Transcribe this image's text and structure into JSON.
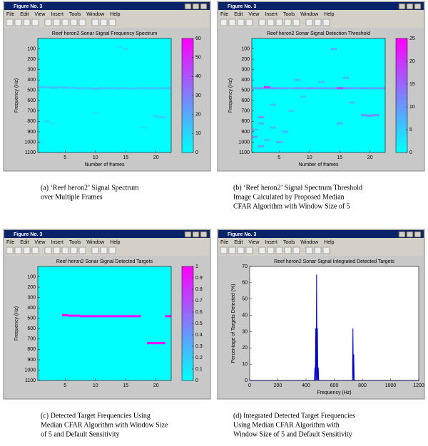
{
  "window_title": "Figure No. 3",
  "menu": [
    "File",
    "Edit",
    "View",
    "Insert",
    "Tools",
    "Window",
    "Help"
  ],
  "chart_data": [
    {
      "type": "heatmap",
      "title": "Reef heron2 Sonar Signal Frequency Spectrum",
      "xlabel": "Number of frames",
      "ylabel": "Frequency (Hz)",
      "caption": [
        "(a) ‘Reef heron2’ Signal Spectrum",
        "over Multiple Frames"
      ],
      "colormap": "cool",
      "xlim": [
        0.5,
        22.5
      ],
      "ylim": [
        0,
        1100
      ],
      "yreverse": true,
      "xticks": [
        5,
        10,
        15,
        20
      ],
      "yticks": [
        100,
        200,
        300,
        400,
        500,
        600,
        700,
        800,
        900,
        1000,
        1100
      ],
      "clim": [
        0,
        60
      ],
      "cticks": [
        0,
        10,
        20,
        30,
        40,
        50,
        60
      ],
      "x": [
        1,
        2,
        3,
        4,
        5,
        6,
        7,
        8,
        9,
        10,
        11,
        12,
        13,
        14,
        15,
        16,
        17,
        18,
        19,
        20,
        21,
        22,
        2,
        3,
        1,
        10,
        15,
        18,
        20,
        21,
        14
      ],
      "y": [
        470,
        470,
        475,
        470,
        475,
        475,
        480,
        480,
        480,
        485,
        480,
        480,
        480,
        480,
        480,
        485,
        480,
        480,
        480,
        480,
        480,
        480,
        800,
        820,
        1000,
        720,
        100,
        860,
        750,
        760,
        80
      ],
      "values": [
        14,
        12,
        15,
        13,
        16,
        12,
        14,
        13,
        12,
        15,
        14,
        13,
        12,
        14,
        13,
        12,
        13,
        12,
        14,
        13,
        12,
        14,
        8,
        6,
        5,
        6,
        8,
        6,
        10,
        12,
        7
      ]
    },
    {
      "type": "heatmap",
      "title": "Reef heron2 Sonar Signal Detection Threshold",
      "xlabel": "Number of frames",
      "ylabel": "Frequency (Hz)",
      "caption": [
        "(b) ‘Reef heron2’ Signal Spectrum Threshold",
        "Image Calculated by Proposed Median",
        "CFAR Algorithm with Window Size of 5"
      ],
      "colormap": "cool",
      "xlim": [
        0.5,
        22.5
      ],
      "ylim": [
        0,
        1100
      ],
      "yreverse": true,
      "xticks": [
        5,
        10,
        15,
        20
      ],
      "yticks": [
        100,
        200,
        300,
        400,
        500,
        600,
        700,
        800,
        900,
        1000,
        1100
      ],
      "clim": [
        0,
        25
      ],
      "cticks": [
        0,
        5,
        10,
        15,
        20,
        25
      ],
      "x": [
        1,
        2,
        3,
        4,
        5,
        6,
        7,
        8,
        9,
        10,
        11,
        12,
        13,
        14,
        15,
        16,
        17,
        18,
        19,
        20,
        21,
        22,
        3,
        15,
        2,
        4,
        6,
        1,
        3,
        5,
        2,
        8,
        16,
        19,
        20,
        21,
        14,
        12,
        7,
        1,
        2,
        4,
        9,
        15,
        17
      ],
      "y": [
        480,
        480,
        480,
        480,
        480,
        480,
        480,
        480,
        480,
        480,
        480,
        480,
        480,
        480,
        480,
        480,
        480,
        480,
        480,
        480,
        480,
        480,
        470,
        480,
        820,
        860,
        900,
        950,
        980,
        1000,
        760,
        400,
        380,
        740,
        745,
        740,
        100,
        420,
        700,
        880,
        1040,
        640,
        560,
        820,
        620
      ],
      "values": [
        9,
        10,
        8,
        11,
        10,
        9,
        8,
        10,
        9,
        11,
        10,
        9,
        8,
        9,
        10,
        11,
        9,
        8,
        10,
        9,
        8,
        9,
        20,
        18,
        8,
        6,
        7,
        9,
        6,
        8,
        10,
        6,
        7,
        10,
        12,
        11,
        8,
        6,
        5,
        7,
        9,
        6,
        5,
        7,
        6
      ]
    },
    {
      "type": "heatmap",
      "title": "Reef heron2 Sonar Signal Detected Targets",
      "ylabel": "Frequency (Hz)",
      "caption": [
        "(c) Detected Target Frequencies Using",
        "Median CFAR Algorithm with Window Size",
        "of 5 and Default Sensitivity"
      ],
      "colormap": "cool",
      "xlim": [
        0.5,
        22.5
      ],
      "ylim": [
        0,
        1100
      ],
      "yreverse": true,
      "xticks": [
        5,
        10,
        15,
        20
      ],
      "yticks": [
        100,
        200,
        300,
        400,
        500,
        600,
        700,
        800,
        900,
        1000,
        1100
      ],
      "clim": [
        0,
        1
      ],
      "cticks": [
        0,
        0.1,
        0.2,
        0.3,
        0.4,
        0.5,
        0.6,
        0.7,
        0.8,
        0.9,
        1
      ],
      "x": [
        5,
        6,
        7,
        8,
        9,
        10,
        11,
        12,
        13,
        14,
        15,
        16,
        17,
        22,
        19,
        20,
        21
      ],
      "y": [
        470,
        475,
        475,
        480,
        480,
        480,
        480,
        480,
        480,
        480,
        480,
        480,
        480,
        480,
        740,
        740,
        740
      ],
      "values": [
        1,
        1,
        1,
        1,
        1,
        1,
        1,
        1,
        1,
        1,
        1,
        1,
        1,
        1,
        1,
        1,
        1
      ]
    },
    {
      "type": "line",
      "title": "Reef heron2 Sonar Signal Integrated Detected Targets",
      "xlabel": "Frequency (Hz)",
      "ylabel": "Percentage of Targets Detected (%)",
      "caption": [
        "(d) Integrated Detected Target Frequencies",
        "Using Median CFAR Algorithm with",
        "Window Size of 5 and Default Sensitivity"
      ],
      "xlim": [
        0,
        1200
      ],
      "ylim": [
        0,
        70
      ],
      "xticks": [
        0,
        200,
        400,
        600,
        800,
        1000,
        1200
      ],
      "yticks": [
        0,
        10,
        20,
        30,
        40,
        50,
        60,
        70
      ],
      "series": [
        {
          "color": "#0000cc",
          "x": [
            0,
            460,
            463,
            466,
            469,
            472,
            475,
            478,
            481,
            484,
            487,
            490,
            730,
            733,
            736,
            739,
            742,
            745,
            748,
            1200
          ],
          "values": [
            0,
            0,
            8,
            0,
            32,
            0,
            65,
            0,
            32,
            0,
            8,
            0,
            0,
            32,
            0,
            16,
            0,
            0,
            0,
            0
          ]
        }
      ]
    }
  ]
}
